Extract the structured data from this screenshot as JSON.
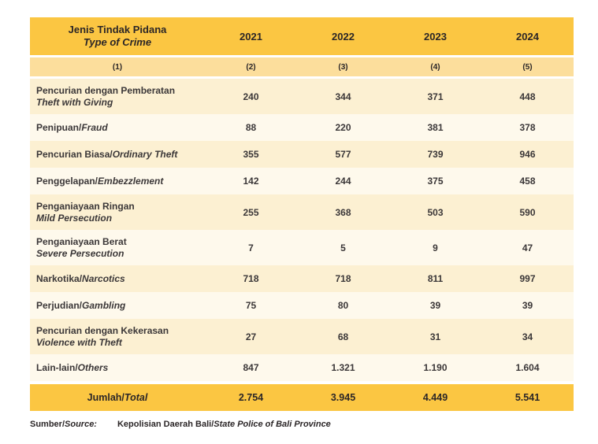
{
  "table": {
    "header": {
      "label_line1": "Jenis Tindak Pidana",
      "label_line2": "Type of Crime",
      "years": [
        "2021",
        "2022",
        "2023",
        "2024"
      ]
    },
    "subheader": [
      "(1)",
      "(2)",
      "(3)",
      "(4)",
      "(5)"
    ],
    "rows": [
      {
        "label_id": "Pencurian dengan Pemberatan",
        "label_en": "Theft with Giving",
        "layout": "two-line",
        "values": [
          "240",
          "344",
          "371",
          "448"
        ]
      },
      {
        "label_id": "Penipuan/",
        "label_en": "Fraud",
        "layout": "one-line",
        "values": [
          "88",
          "220",
          "381",
          "378"
        ]
      },
      {
        "label_id": "Pencurian Biasa/",
        "label_en": "Ordinary Theft",
        "layout": "one-line",
        "values": [
          "355",
          "577",
          "739",
          "946"
        ]
      },
      {
        "label_id": "Penggelapan/",
        "label_en": "Embezzlement",
        "layout": "one-line",
        "values": [
          "142",
          "244",
          "375",
          "458"
        ]
      },
      {
        "label_id": "Penganiayaan Ringan",
        "label_en": "Mild Persecution",
        "layout": "two-line",
        "values": [
          "255",
          "368",
          "503",
          "590"
        ]
      },
      {
        "label_id": "Penganiayaan Berat",
        "label_en": "Severe Persecution",
        "layout": "two-line",
        "values": [
          "7",
          "5",
          "9",
          "47"
        ]
      },
      {
        "label_id": "Narkotika/",
        "label_en": "Narcotics",
        "layout": "one-line",
        "values": [
          "718",
          "718",
          "811",
          "997"
        ]
      },
      {
        "label_id": "Perjudian/",
        "label_en": "Gambling",
        "layout": "one-line",
        "values": [
          "75",
          "80",
          "39",
          "39"
        ]
      },
      {
        "label_id": "Pencurian dengan Kekerasan",
        "label_en": "Violence with Theft",
        "layout": "two-line",
        "values": [
          "27",
          "68",
          "31",
          "34"
        ]
      },
      {
        "label_id": "Lain-lain/",
        "label_en": "Others",
        "layout": "one-line",
        "values": [
          "847",
          "1.321",
          "1.190",
          "1.604"
        ]
      }
    ],
    "total": {
      "label_id": "Jumlah/",
      "label_en": "Total",
      "values": [
        "2.754",
        "3.945",
        "4.449",
        "5.541"
      ]
    }
  },
  "source_note": {
    "label_id": "Sumber/",
    "label_en": "Source:",
    "text_id": "Kepolisian Daerah Bali/",
    "text_en": "State Police of Bali Province"
  },
  "colors": {
    "header_bg": "#FBC642",
    "subheader_bg": "#FCDE9C",
    "row_odd_bg": "#FCF0D2",
    "row_even_bg": "#FEF9EC",
    "total_bg": "#FBC642",
    "text_dark": "#2B2627",
    "text_body": "#3B3738"
  },
  "chart_data": {
    "type": "table",
    "title": "Jenis Tindak Pidana / Type of Crime, 2021-2024",
    "columns": [
      "Jenis Tindak Pidana / Type of Crime",
      "2021",
      "2022",
      "2023",
      "2024"
    ],
    "rows": [
      {
        "category": "Pencurian dengan Pemberatan / Theft with Giving",
        "values": [
          240,
          344,
          371,
          448
        ]
      },
      {
        "category": "Penipuan / Fraud",
        "values": [
          88,
          220,
          381,
          378
        ]
      },
      {
        "category": "Pencurian Biasa / Ordinary Theft",
        "values": [
          355,
          577,
          739,
          946
        ]
      },
      {
        "category": "Penggelapan / Embezzlement",
        "values": [
          142,
          244,
          375,
          458
        ]
      },
      {
        "category": "Penganiayaan Ringan / Mild Persecution",
        "values": [
          255,
          368,
          503,
          590
        ]
      },
      {
        "category": "Penganiayaan Berat / Severe Persecution",
        "values": [
          7,
          5,
          9,
          47
        ]
      },
      {
        "category": "Narkotika / Narcotics",
        "values": [
          718,
          718,
          811,
          997
        ]
      },
      {
        "category": "Perjudian / Gambling",
        "values": [
          75,
          80,
          39,
          39
        ]
      },
      {
        "category": "Pencurian dengan Kekerasan / Violence with Theft",
        "values": [
          27,
          68,
          31,
          34
        ]
      },
      {
        "category": "Lain-lain / Others",
        "values": [
          847,
          1321,
          1190,
          1604
        ]
      }
    ],
    "total": {
      "category": "Jumlah / Total",
      "values": [
        2754,
        3945,
        4449,
        5541
      ]
    },
    "source": "Kepolisian Daerah Bali / State Police of Bali Province"
  }
}
